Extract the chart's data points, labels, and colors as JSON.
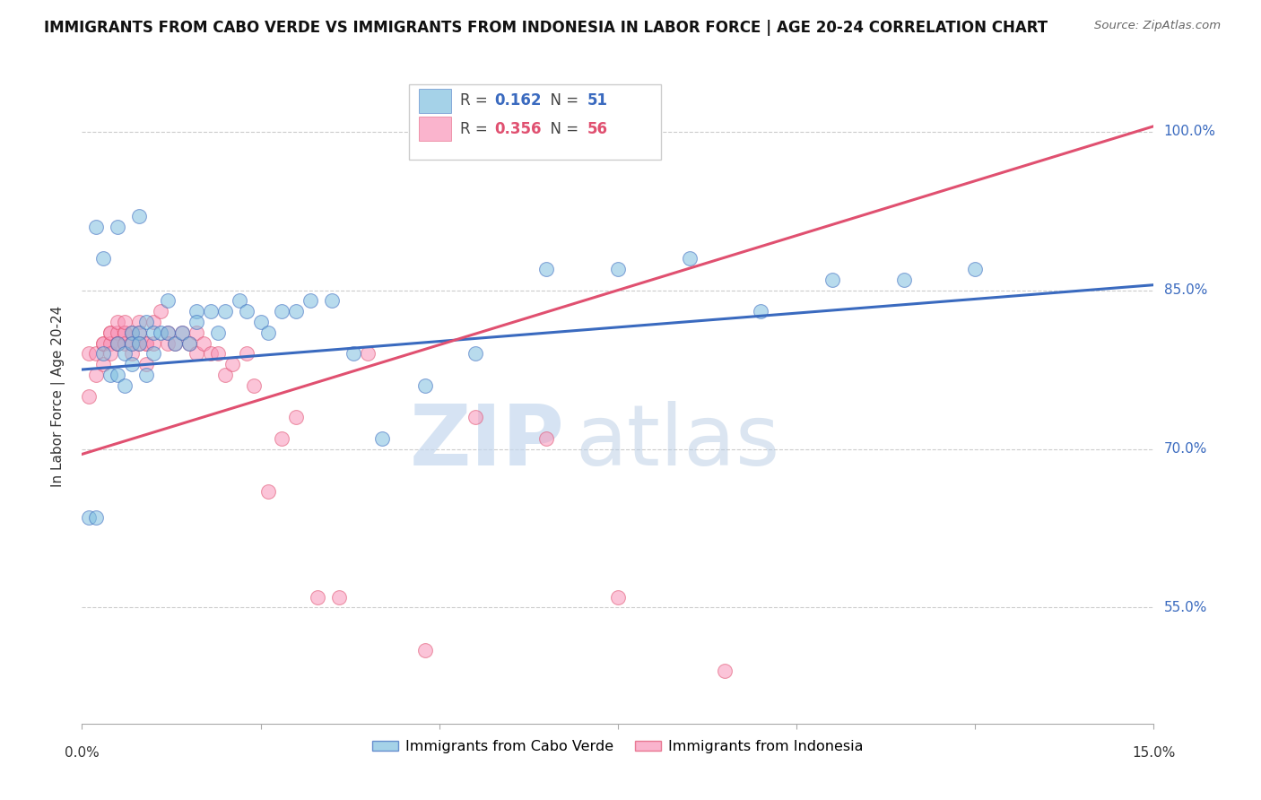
{
  "title": "IMMIGRANTS FROM CABO VERDE VS IMMIGRANTS FROM INDONESIA IN LABOR FORCE | AGE 20-24 CORRELATION CHART",
  "source": "Source: ZipAtlas.com",
  "ylabel": "In Labor Force | Age 20-24",
  "ytick_labels": [
    "55.0%",
    "70.0%",
    "85.0%",
    "100.0%"
  ],
  "ytick_values": [
    0.55,
    0.7,
    0.85,
    1.0
  ],
  "xlim": [
    0.0,
    0.15
  ],
  "ylim": [
    0.44,
    1.06
  ],
  "legend_blue_label": "Immigrants from Cabo Verde",
  "legend_pink_label": "Immigrants from Indonesia",
  "R_blue": 0.162,
  "N_blue": 51,
  "R_pink": 0.356,
  "N_pink": 56,
  "blue_color": "#7fbfdf",
  "pink_color": "#f895b8",
  "line_blue": "#3a6abf",
  "line_pink": "#e05070",
  "watermark_zip": "ZIP",
  "watermark_atlas": "atlas",
  "cabo_verde_x": [
    0.001,
    0.002,
    0.003,
    0.004,
    0.005,
    0.005,
    0.006,
    0.006,
    0.007,
    0.007,
    0.007,
    0.008,
    0.008,
    0.009,
    0.009,
    0.01,
    0.01,
    0.011,
    0.012,
    0.012,
    0.013,
    0.014,
    0.015,
    0.016,
    0.016,
    0.018,
    0.019,
    0.02,
    0.022,
    0.023,
    0.025,
    0.026,
    0.028,
    0.03,
    0.032,
    0.035,
    0.038,
    0.042,
    0.048,
    0.055,
    0.065,
    0.075,
    0.085,
    0.095,
    0.105,
    0.115,
    0.125,
    0.002,
    0.003,
    0.005,
    0.008
  ],
  "cabo_verde_y": [
    0.635,
    0.635,
    0.79,
    0.77,
    0.8,
    0.77,
    0.79,
    0.76,
    0.81,
    0.8,
    0.78,
    0.81,
    0.8,
    0.77,
    0.82,
    0.79,
    0.81,
    0.81,
    0.84,
    0.81,
    0.8,
    0.81,
    0.8,
    0.83,
    0.82,
    0.83,
    0.81,
    0.83,
    0.84,
    0.83,
    0.82,
    0.81,
    0.83,
    0.83,
    0.84,
    0.84,
    0.79,
    0.71,
    0.76,
    0.79,
    0.87,
    0.87,
    0.88,
    0.83,
    0.86,
    0.86,
    0.87,
    0.91,
    0.88,
    0.91,
    0.92
  ],
  "indonesia_x": [
    0.001,
    0.001,
    0.002,
    0.002,
    0.003,
    0.003,
    0.003,
    0.004,
    0.004,
    0.004,
    0.004,
    0.005,
    0.005,
    0.005,
    0.005,
    0.006,
    0.006,
    0.006,
    0.006,
    0.007,
    0.007,
    0.007,
    0.008,
    0.008,
    0.008,
    0.009,
    0.009,
    0.009,
    0.01,
    0.01,
    0.011,
    0.012,
    0.012,
    0.013,
    0.014,
    0.015,
    0.016,
    0.016,
    0.017,
    0.018,
    0.019,
    0.02,
    0.021,
    0.023,
    0.024,
    0.026,
    0.028,
    0.03,
    0.033,
    0.036,
    0.04,
    0.048,
    0.055,
    0.065,
    0.075,
    0.09
  ],
  "indonesia_y": [
    0.75,
    0.79,
    0.79,
    0.77,
    0.8,
    0.8,
    0.78,
    0.81,
    0.8,
    0.81,
    0.79,
    0.81,
    0.8,
    0.82,
    0.8,
    0.81,
    0.81,
    0.8,
    0.82,
    0.81,
    0.8,
    0.79,
    0.82,
    0.81,
    0.8,
    0.8,
    0.8,
    0.78,
    0.8,
    0.82,
    0.83,
    0.81,
    0.8,
    0.8,
    0.81,
    0.8,
    0.81,
    0.79,
    0.8,
    0.79,
    0.79,
    0.77,
    0.78,
    0.79,
    0.76,
    0.66,
    0.71,
    0.73,
    0.56,
    0.56,
    0.79,
    0.51,
    0.73,
    0.71,
    0.56,
    0.49
  ],
  "blue_trendline": [
    0.0,
    0.15,
    0.775,
    0.855
  ],
  "pink_trendline": [
    0.0,
    0.15,
    0.695,
    1.005
  ]
}
